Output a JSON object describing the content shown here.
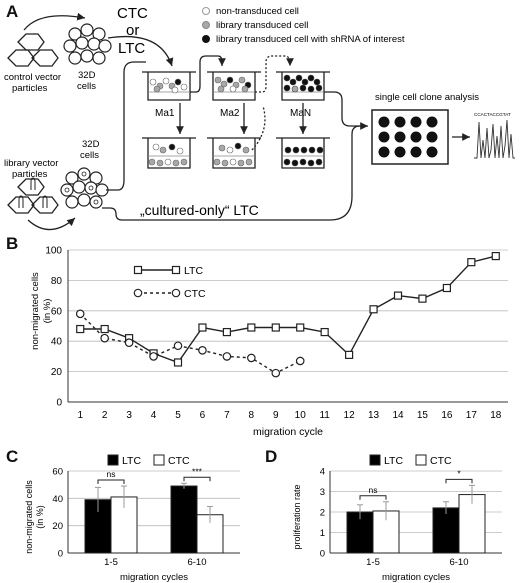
{
  "panels": {
    "a": "A",
    "b": "B",
    "c": "C",
    "d": "D"
  },
  "schematic": {
    "ctc_label": "CTC",
    "or_label": "or",
    "ltc_label": "LTC",
    "control_label_1": "control vector",
    "control_label_2": "particles",
    "library_label_1": "library vector",
    "library_label_2": "particles",
    "cells_top_1": "32D",
    "cells_top_2": "cells",
    "cells_bottom_1": "32D",
    "cells_bottom_2": "cells",
    "legend": [
      {
        "label": "non-transduced cell",
        "color": "#ffffff"
      },
      {
        "label": "library transduced cell",
        "color": "#a8a8a8"
      },
      {
        "label": "library transduced cell with shRNA of interest",
        "color": "#111111"
      }
    ],
    "ma1": "Ma1",
    "ma2": "Ma2",
    "man": "MaN",
    "clone_analysis": "single cell clone analysis",
    "sequence_text": "CCACTACCGTAT",
    "cultured_only": "„cultured-only“ LTC"
  },
  "chart_data": [
    {
      "type": "line",
      "panel": "B",
      "ylabel": "non-migrated cells\n(in %)",
      "xlabel": "migration cycle",
      "x": [
        1,
        2,
        3,
        4,
        5,
        6,
        7,
        8,
        9,
        10,
        11,
        12,
        13,
        14,
        15,
        16,
        17,
        18
      ],
      "ylim": [
        0,
        100
      ],
      "yticks": [
        0,
        20,
        40,
        60,
        80,
        100
      ],
      "grid": true,
      "legend_position": "upper-left",
      "series": [
        {
          "name": "LTC",
          "marker": "square",
          "line": "solid",
          "values": [
            48,
            48,
            42,
            32,
            26,
            49,
            46,
            49,
            49,
            49,
            46,
            31,
            61,
            70,
            68,
            75,
            92,
            96
          ]
        },
        {
          "name": "CTC",
          "marker": "circle",
          "line": "dashed",
          "values": [
            58,
            42,
            39,
            30,
            37,
            34,
            30,
            29,
            19,
            27,
            null,
            null,
            null,
            null,
            null,
            null,
            null,
            null
          ]
        }
      ]
    },
    {
      "type": "bar",
      "panel": "C",
      "ylabel": "non-migrated cells\n(in %)",
      "xlabel": "migration cycles",
      "categories": [
        "1-5",
        "6-10"
      ],
      "ylim": [
        0,
        60
      ],
      "yticks": [
        0,
        20,
        40,
        60
      ],
      "grid": true,
      "legend_position": "top",
      "series": [
        {
          "name": "LTC",
          "color": "#000000",
          "values": [
            39,
            49
          ],
          "error": [
            9,
            2
          ]
        },
        {
          "name": "CTC",
          "color": "#ffffff",
          "values": [
            41,
            28
          ],
          "error": [
            8,
            6
          ]
        }
      ],
      "significance": [
        "ns",
        "***"
      ]
    },
    {
      "type": "bar",
      "panel": "D",
      "ylabel": "proliferation rate",
      "xlabel": "migration cycles",
      "categories": [
        "1-5",
        "6-10"
      ],
      "ylim": [
        0,
        4
      ],
      "yticks": [
        0,
        1,
        2,
        3,
        4
      ],
      "grid": true,
      "legend_position": "top",
      "series": [
        {
          "name": "LTC",
          "color": "#000000",
          "values": [
            2.0,
            2.2
          ],
          "error": [
            0.35,
            0.3
          ]
        },
        {
          "name": "CTC",
          "color": "#ffffff",
          "values": [
            2.05,
            2.85
          ],
          "error": [
            0.45,
            0.45
          ]
        }
      ],
      "significance": [
        "ns",
        "*"
      ]
    }
  ]
}
